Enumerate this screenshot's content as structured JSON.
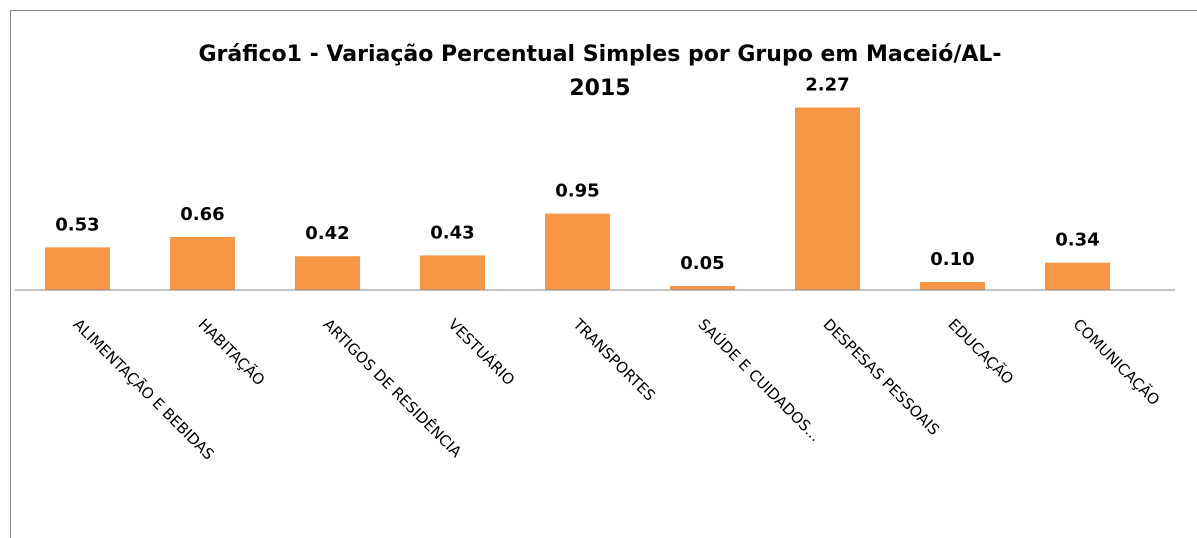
{
  "chart_data": {
    "type": "bar",
    "title": "Gráfico1 - Variação Percentual Simples por Grupo em Maceió/AL-2015",
    "categories": [
      "ALIMENTAÇÃO E BEBIDAS",
      "HABITAÇÃO",
      "ARTIGOS DE RESIDÊNCIA",
      "VESTUÁRIO",
      "TRANSPORTES",
      "SAÚDE E CUIDADOS...",
      "DESPESAS PESSOAIS",
      "EDUCAÇÃO",
      "COMUNICAÇÃO"
    ],
    "values": [
      0.53,
      0.66,
      0.42,
      0.43,
      0.95,
      0.05,
      2.27,
      0.1,
      0.34
    ],
    "value_labels": [
      "0.53",
      "0.66",
      "0.42",
      "0.43",
      "0.95",
      "0.05",
      "2.27",
      "0.10",
      "0.34"
    ],
    "color": "#f79646",
    "ylim": [
      0,
      2.5
    ]
  }
}
